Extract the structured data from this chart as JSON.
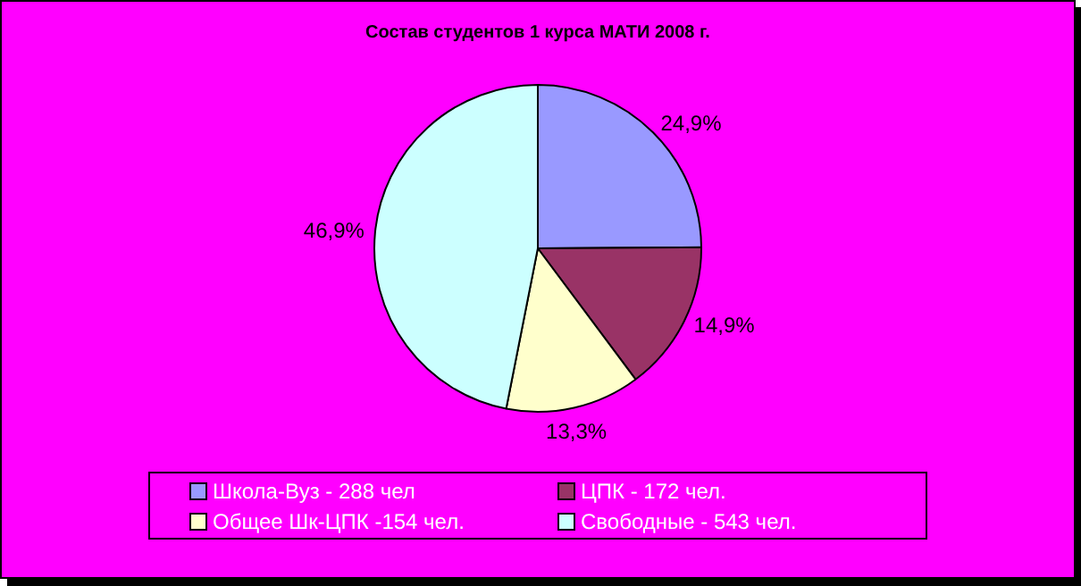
{
  "chart_data": {
    "type": "pie",
    "title": "Состав студентов 1 курса МАТИ 2008 г.",
    "categories": [
      "Школа-Вуз - 288 чел",
      "ЦПК - 172 чел.",
      "Общее Шк-ЦПК -154 чел.",
      "Свободные - 543 чел."
    ],
    "values": [
      24.9,
      14.9,
      13.3,
      46.9
    ],
    "value_labels": [
      "24,9%",
      "14,9%",
      "13,3%",
      "46,9%"
    ],
    "colors": [
      "#9999ff",
      "#993366",
      "#ffffcc",
      "#ccffff"
    ],
    "legend": "bottom"
  }
}
